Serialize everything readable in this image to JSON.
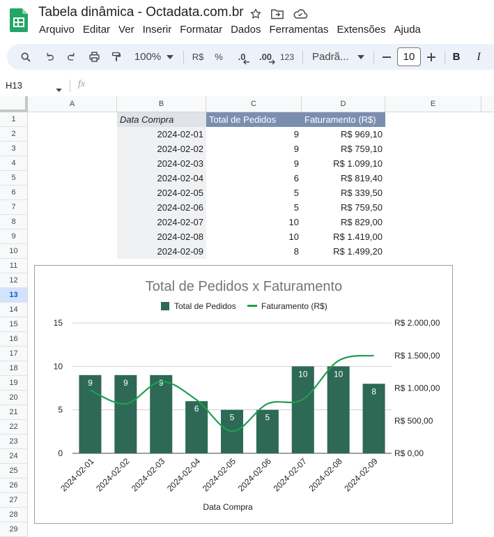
{
  "app": {
    "title": "Tabela dinâmica - Octadata.com.br",
    "menu": [
      "Arquivo",
      "Editar",
      "Ver",
      "Inserir",
      "Formatar",
      "Dados",
      "Ferramentas",
      "Extensões",
      "Ajuda"
    ]
  },
  "toolbar": {
    "zoom": "100%",
    "currency": "R$",
    "percent": "%",
    "decrease_decimals": ".0",
    "increase_decimals": ".00",
    "number_format": "123",
    "font": "Padrã...",
    "font_size": "10",
    "bold": "B",
    "italic": "I"
  },
  "formula_bar": {
    "name_box": "H13",
    "fx": "fx",
    "value": ""
  },
  "columns": [
    "A",
    "B",
    "C",
    "D",
    "E"
  ],
  "rows": [
    "1",
    "2",
    "3",
    "4",
    "5",
    "6",
    "7",
    "8",
    "9",
    "10",
    "11",
    "12",
    "13",
    "14",
    "15",
    "16",
    "17",
    "18",
    "19",
    "20",
    "21",
    "22",
    "23",
    "24",
    "25",
    "26",
    "27",
    "28",
    "29"
  ],
  "selected_row": "13",
  "table": {
    "headers": [
      "Data Compra",
      "Total de Pedidos",
      "Faturamento (R$)"
    ],
    "rows": [
      [
        "2024-02-01",
        "9",
        "R$ 969,10"
      ],
      [
        "2024-02-02",
        "9",
        "R$ 759,10"
      ],
      [
        "2024-02-03",
        "9",
        "R$ 1.099,10"
      ],
      [
        "2024-02-04",
        "6",
        "R$ 819,40"
      ],
      [
        "2024-02-05",
        "5",
        "R$ 339,50"
      ],
      [
        "2024-02-06",
        "5",
        "R$ 759,50"
      ],
      [
        "2024-02-07",
        "10",
        "R$ 829,00"
      ],
      [
        "2024-02-08",
        "10",
        "R$ 1.419,00"
      ],
      [
        "2024-02-09",
        "8",
        "R$ 1.499,20"
      ]
    ]
  },
  "colors": {
    "bar": "#2d6955",
    "line": "#1e9e4e",
    "header_blue": "#7c8eb0",
    "selected_row": "#d3e3fd",
    "sheets_green": "#23a566"
  },
  "chart_data": {
    "type": "bar",
    "title": "Total de Pedidos x Faturamento",
    "xlabel": "Data Compra",
    "categories": [
      "2024-02-01",
      "2024-02-02",
      "2024-02-03",
      "2024-02-04",
      "2024-02-05",
      "2024-02-06",
      "2024-02-07",
      "2024-02-08",
      "2024-02-09"
    ],
    "series": [
      {
        "name": "Total de Pedidos",
        "type": "bar",
        "axis": "left",
        "values": [
          9,
          9,
          9,
          6,
          5,
          5,
          10,
          10,
          8
        ]
      },
      {
        "name": "Faturamento (R$)",
        "type": "line",
        "smooth": true,
        "axis": "right",
        "values": [
          969.1,
          759.1,
          1099.1,
          819.4,
          339.5,
          759.5,
          829.0,
          1419.0,
          1499.2
        ]
      }
    ],
    "ylim": [
      0,
      15
    ],
    "yticks": [
      "0",
      "5",
      "10",
      "15"
    ],
    "ylim_right": [
      0,
      2000
    ],
    "yticks_right": [
      "R$ 0,00",
      "R$ 500,00",
      "R$ 1.000,00",
      "R$ 1.500,00",
      "R$ 2.000,00"
    ],
    "data_labels": [
      "9",
      "9",
      "9",
      "6",
      "5",
      "5",
      "10",
      "10",
      "8"
    ],
    "legend": "top",
    "grid": true
  }
}
